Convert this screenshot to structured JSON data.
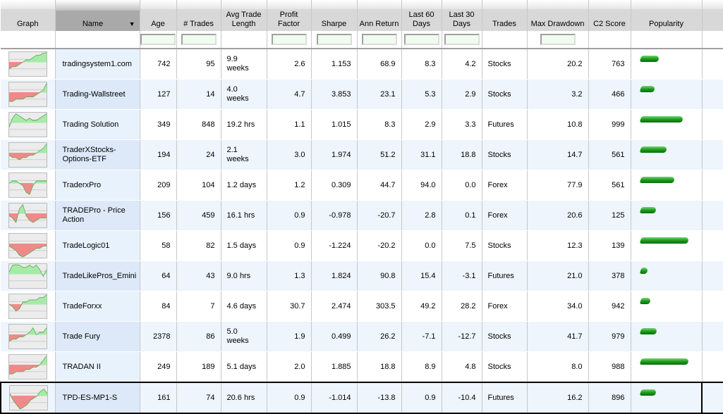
{
  "columns": [
    "Graph",
    "Name",
    "Age",
    "# Trades",
    "Avg Trade Length",
    "Profit Factor",
    "Sharpe",
    "Ann Return",
    "Last 60 Days",
    "Last 30 Days",
    "Trades",
    "Max Drawdown",
    "C2 Score",
    "Popularity"
  ],
  "sorted_column": "Name",
  "sort_icon": "triangle-down-icon",
  "colors": {
    "positive_graph": "#a8eaa8",
    "negative_graph": "#f08a8a",
    "popularity_bar": "#1f9a1f",
    "selected_border": "#000000"
  },
  "rows": [
    {
      "name": "tradingsystem1.com",
      "age": "742",
      "trades": "95",
      "avg": "9.9 weeks",
      "pf": "2.6",
      "sharpe": "1.153",
      "ann": "68.9",
      "l60": "8.3",
      "l30": "4.2",
      "type": "Stocks",
      "dd": "20.2",
      "c2": "763",
      "popularity": 0.38,
      "graph": [
        -3,
        -2,
        -2,
        -1,
        0,
        1,
        1,
        2,
        3,
        3,
        4,
        5
      ]
    },
    {
      "name": "Trading-Wallstreet",
      "age": "127",
      "trades": "14",
      "avg": "4.0 weeks",
      "pf": "4.7",
      "sharpe": "3.853",
      "ann": "23.1",
      "l60": "5.3",
      "l30": "2.9",
      "type": "Stocks",
      "dd": "3.2",
      "c2": "466",
      "popularity": 0.3,
      "graph": [
        -4,
        -4,
        -3,
        -3,
        -3,
        -2,
        -2,
        -2,
        -1,
        0,
        1,
        4
      ]
    },
    {
      "name": "Trading Solution",
      "age": "349",
      "trades": "848",
      "avg": "19.2 hrs",
      "pf": "1.1",
      "sharpe": "1.015",
      "ann": "8.3",
      "l60": "2.9",
      "l30": "3.3",
      "type": "Futures",
      "dd": "10.8",
      "c2": "999",
      "popularity": 0.88,
      "graph": [
        -2,
        2,
        4,
        3,
        2,
        1,
        2,
        1,
        1,
        2,
        3,
        4
      ]
    },
    {
      "name": "TraderXStocks-Options-ETF",
      "age": "194",
      "trades": "24",
      "avg": "2.1 weeks",
      "pf": "3.0",
      "sharpe": "1.974",
      "ann": "51.2",
      "l60": "31.1",
      "l30": "18.8",
      "type": "Stocks",
      "dd": "14.7",
      "c2": "561",
      "popularity": 0.55,
      "graph": [
        -1,
        -2,
        -2,
        -3,
        -2,
        -2,
        -1,
        -1,
        0,
        1,
        2,
        4
      ]
    },
    {
      "name": "TraderxPro",
      "age": "209",
      "trades": "104",
      "avg": "1.2 days",
      "pf": "1.2",
      "sharpe": "0.309",
      "ann": "44.7",
      "l60": "94.0",
      "l30": "0.0",
      "type": "Forex",
      "dd": "77.9",
      "c2": "561",
      "popularity": 0.7,
      "graph": [
        0,
        1,
        1,
        0,
        -1,
        -4,
        -5,
        -1,
        1,
        1,
        1,
        1
      ]
    },
    {
      "name": "TRADEPro - Price Action",
      "age": "156",
      "trades": "459",
      "avg": "16.1 hrs",
      "pf": "0.9",
      "sharpe": "-0.978",
      "ann": "-20.7",
      "l60": "2.8",
      "l30": "0.1",
      "type": "Forex",
      "dd": "20.6",
      "c2": "125",
      "popularity": 0.33,
      "graph": [
        -1,
        -2,
        -4,
        2,
        4,
        -1,
        -3,
        -4,
        -3,
        -2,
        -2,
        -2
      ]
    },
    {
      "name": "TradeLogic01",
      "age": "58",
      "trades": "82",
      "avg": "1.5 days",
      "pf": "0.9",
      "sharpe": "-1.224",
      "ann": "-20.2",
      "l60": "0.0",
      "l30": "7.5",
      "type": "Stocks",
      "dd": "12.3",
      "c2": "139",
      "popularity": 1.0,
      "graph": [
        -1,
        -2,
        -3,
        -5,
        -6,
        -5,
        -4,
        -3,
        -2,
        -2,
        -1,
        -1
      ]
    },
    {
      "name": "TradeLikePros_Emini",
      "age": "64",
      "trades": "43",
      "avg": "9.0 hrs",
      "pf": "1.3",
      "sharpe": "1.824",
      "ann": "90.8",
      "l60": "15.4",
      "l30": "-3.1",
      "type": "Futures",
      "dd": "21.0",
      "c2": "378",
      "popularity": 0.14,
      "graph": [
        1,
        4,
        5,
        4,
        3,
        3,
        4,
        3,
        4,
        2,
        -1,
        2
      ]
    },
    {
      "name": "TradeForxx",
      "age": "84",
      "trades": "7",
      "avg": "4.6 days",
      "pf": "30.7",
      "sharpe": "2.474",
      "ann": "303.5",
      "l60": "49.2",
      "l30": "28.2",
      "type": "Forex",
      "dd": "34.0",
      "c2": "942",
      "popularity": 0.2,
      "graph": [
        0,
        -1,
        -3,
        -2,
        1,
        1,
        2,
        2,
        2,
        3,
        3,
        5
      ]
    },
    {
      "name": "Trade Fury",
      "age": "2378",
      "trades": "86",
      "avg": "5.0 weeks",
      "pf": "1.9",
      "sharpe": "0.499",
      "ann": "26.2",
      "l60": "-7.1",
      "l30": "-12.7",
      "type": "Stocks",
      "dd": "41.7",
      "c2": "979",
      "popularity": 0.34,
      "graph": [
        -3,
        -2,
        -2,
        -1,
        -1,
        0,
        1,
        3,
        0,
        1,
        1,
        3
      ]
    },
    {
      "name": "TRADAN II",
      "age": "249",
      "trades": "189",
      "avg": "5.1 days",
      "pf": "2.0",
      "sharpe": "1.885",
      "ann": "18.8",
      "l60": "8.9",
      "l30": "4.8",
      "type": "Stocks",
      "dd": "8.0",
      "c2": "988",
      "popularity": 1.0,
      "graph": [
        -4,
        -4,
        -3,
        -3,
        -3,
        -2,
        -2,
        -1,
        -1,
        0,
        2,
        4
      ]
    },
    {
      "name": "TPD-ES-MP1-S",
      "age": "161",
      "trades": "74",
      "avg": "20.6 hrs",
      "pf": "0.9",
      "sharpe": "-1.014",
      "ann": "-13.8",
      "l60": "0.9",
      "l30": "-10.4",
      "type": "Futures",
      "dd": "16.2",
      "c2": "896",
      "popularity": 0.33,
      "graph": [
        1,
        -2,
        -4,
        -6,
        -5,
        -4,
        -2,
        -1,
        0,
        2,
        3,
        1
      ],
      "selected": true
    }
  ]
}
